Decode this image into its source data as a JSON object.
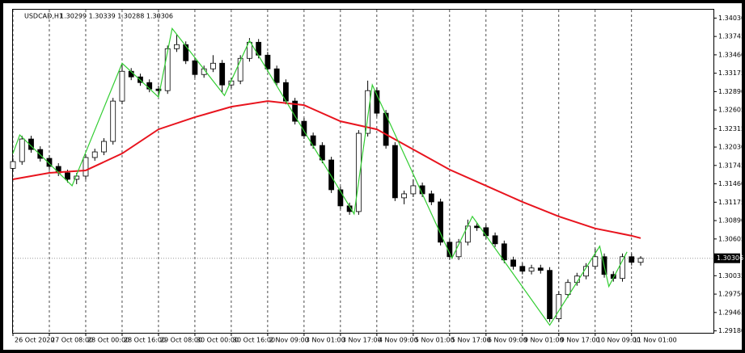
{
  "chart_data": {
    "type": "candlestick",
    "title": "USDCAD,H1",
    "ohlc_info": "1.30299 1.30339 1.30288 1.30306",
    "up_color": "#ffffff",
    "down_color": "#000000",
    "outline_color": "#000000",
    "grid": true,
    "x": [
      0,
      4,
      8,
      12,
      16,
      20,
      24,
      28,
      32,
      36,
      40,
      44,
      48,
      52,
      56,
      60,
      64,
      68,
      72,
      76,
      80,
      84,
      88,
      92,
      96,
      100,
      104,
      108,
      112,
      116,
      120,
      124,
      128,
      132,
      136,
      140,
      144,
      148,
      152,
      156,
      160,
      164,
      168,
      172,
      176,
      180,
      184,
      188,
      192,
      196,
      200,
      204,
      208,
      212,
      216,
      220,
      224,
      228,
      232,
      236,
      240,
      244,
      248,
      252,
      256,
      260,
      264,
      268,
      272,
      276
    ],
    "open": [
      1.317,
      1.31805,
      1.32155,
      1.31992,
      1.31855,
      1.3173,
      1.3163,
      1.3153,
      1.3158,
      1.31868,
      1.31955,
      1.32118,
      1.32743,
      1.33205,
      1.33118,
      1.3303,
      1.3293,
      1.32905,
      1.33555,
      1.33618,
      1.33368,
      1.33155,
      1.33243,
      1.3333,
      1.32993,
      1.33055,
      1.33405,
      1.33655,
      1.33455,
      1.33243,
      1.3303,
      1.32743,
      1.3243,
      1.32205,
      1.32055,
      1.3183,
      1.31368,
      1.31118,
      1.3103,
      1.32243,
      1.32905,
      1.32555,
      1.32055,
      1.31243,
      1.31305,
      1.3143,
      1.31305,
      1.3118,
      1.30555,
      1.3033,
      1.30555,
      1.30805,
      1.3078,
      1.30655,
      1.3053,
      1.3028,
      1.3018,
      1.30105,
      1.30155,
      1.30118,
      1.29368,
      1.29743,
      1.2993,
      1.3003,
      1.3018,
      1.3033,
      1.30055,
      1.29993,
      1.3033,
      1.30243
    ],
    "high": [
      1.31855,
      1.32205,
      1.32205,
      1.32042,
      1.31905,
      1.3178,
      1.3168,
      1.3163,
      1.31918,
      1.32005,
      1.32168,
      1.32793,
      1.33305,
      1.33255,
      1.33168,
      1.3308,
      1.3298,
      1.33605,
      1.3378,
      1.33668,
      1.33418,
      1.33293,
      1.33455,
      1.3338,
      1.33105,
      1.33455,
      1.3372,
      1.33705,
      1.33505,
      1.33293,
      1.3308,
      1.32793,
      1.3248,
      1.32255,
      1.32105,
      1.3188,
      1.31418,
      1.31168,
      1.32293,
      1.3306,
      1.32955,
      1.32605,
      1.32105,
      1.31355,
      1.3153,
      1.3148,
      1.31355,
      1.3123,
      1.30605,
      1.30605,
      1.30905,
      1.30855,
      1.3083,
      1.30705,
      1.3058,
      1.3033,
      1.3023,
      1.30205,
      1.30205,
      1.30168,
      1.29793,
      1.2998,
      1.3008,
      1.3023,
      1.30455,
      1.3038,
      1.30105,
      1.3038,
      1.3038,
      1.30339
    ],
    "low": [
      1.3165,
      1.31755,
      1.31942,
      1.31805,
      1.3168,
      1.3158,
      1.3148,
      1.31455,
      1.3153,
      1.31818,
      1.31905,
      1.32068,
      1.32693,
      1.33068,
      1.3298,
      1.3288,
      1.32805,
      1.32855,
      1.33505,
      1.33318,
      1.33105,
      1.33105,
      1.33193,
      1.3288,
      1.32943,
      1.33005,
      1.33355,
      1.33405,
      1.33193,
      1.3298,
      1.32693,
      1.3238,
      1.32155,
      1.32005,
      1.3178,
      1.31318,
      1.31068,
      1.3098,
      1.3098,
      1.32193,
      1.32505,
      1.32005,
      1.31193,
      1.31143,
      1.31255,
      1.31255,
      1.3113,
      1.30505,
      1.3028,
      1.3028,
      1.30505,
      1.3073,
      1.30605,
      1.3048,
      1.3023,
      1.3013,
      1.30055,
      1.30055,
      1.30068,
      1.29318,
      1.29318,
      1.29693,
      1.2988,
      1.2998,
      1.3013,
      1.30005,
      1.29943,
      1.29943,
      1.30193,
      1.30193
    ],
    "close": [
      1.31805,
      1.32155,
      1.31992,
      1.31855,
      1.3173,
      1.3163,
      1.3153,
      1.3158,
      1.31868,
      1.31955,
      1.32118,
      1.32743,
      1.33205,
      1.33118,
      1.3303,
      1.3293,
      1.32905,
      1.33555,
      1.33618,
      1.33368,
      1.33155,
      1.33243,
      1.3333,
      1.32993,
      1.33055,
      1.33405,
      1.33655,
      1.33455,
      1.33243,
      1.3303,
      1.32743,
      1.3243,
      1.32205,
      1.32055,
      1.3183,
      1.31368,
      1.31118,
      1.3103,
      1.32243,
      1.32905,
      1.32555,
      1.32055,
      1.31243,
      1.31305,
      1.3143,
      1.31305,
      1.3118,
      1.30555,
      1.3033,
      1.30555,
      1.30805,
      1.3078,
      1.30655,
      1.3053,
      1.3028,
      1.3018,
      1.30105,
      1.30155,
      1.30118,
      1.29368,
      1.29743,
      1.2993,
      1.3003,
      1.3018,
      1.3033,
      1.30055,
      1.29993,
      1.3033,
      1.30243,
      1.30306
    ],
    "overlays": [
      {
        "color": "#e8141e",
        "width": 2,
        "x": [
          0,
          16,
          32,
          48,
          64,
          80,
          96,
          112,
          128,
          144,
          160,
          176,
          192,
          208,
          224,
          240,
          256,
          272,
          276
        ],
        "values": [
          1.3153,
          1.3163,
          1.31668,
          1.3193,
          1.32305,
          1.32493,
          1.32655,
          1.32743,
          1.3268,
          1.3243,
          1.32305,
          1.31993,
          1.3168,
          1.3143,
          1.3118,
          1.30955,
          1.30768,
          1.30655,
          1.30618
        ]
      },
      {
        "color": "#32cd32",
        "width": 1.2,
        "x": [
          0,
          3,
          26,
          48,
          64,
          70,
          93,
          104,
          150,
          158,
          193,
          202,
          236,
          258,
          262,
          270
        ],
        "values": [
          1.3193,
          1.32218,
          1.3143,
          1.3333,
          1.32805,
          1.33868,
          1.3283,
          1.3368,
          1.30993,
          1.32993,
          1.30305,
          1.30955,
          1.29268,
          1.30493,
          1.29868,
          1.30405
        ]
      }
    ],
    "last_price": 1.30306,
    "xlim": [
      0,
      308
    ],
    "ylim": [
      1.2915,
      1.3416
    ],
    "yticks": [
      {
        "value": 1.3403,
        "label": "1.34030"
      },
      1.33745,
      {
        "value": 1.3346,
        "label": "1.33460"
      },
      1.33175,
      {
        "value": 1.3289,
        "label": "1.32890"
      },
      1.32605,
      1.32315,
      {
        "value": 1.3203,
        "label": "1.32030"
      },
      1.31745,
      {
        "value": 1.3146,
        "label": "1.31460"
      },
      1.31175,
      {
        "value": 1.3089,
        "label": "1.30890"
      },
      1.30605,
      1.30035,
      {
        "value": 1.2975,
        "label": "1.29750"
      },
      1.29465,
      {
        "value": 1.2918,
        "label": "1.29180"
      }
    ],
    "xticks": [
      {
        "value": 0,
        "label": "26 Oct 2020"
      },
      {
        "value": 16,
        "label": "27 Oct 08:00"
      },
      {
        "value": 32,
        "label": "28 Oct 00:00"
      },
      {
        "value": 48,
        "label": "28 Oct 16:00"
      },
      {
        "value": 64,
        "label": "29 Oct 08:00"
      },
      {
        "value": 80,
        "label": "30 Oct 00:00"
      },
      {
        "value": 96,
        "label": "30 Oct 16:00"
      },
      {
        "value": 112,
        "label": "2 Nov 09:00"
      },
      {
        "value": 128,
        "label": "3 Nov 01:00"
      },
      {
        "value": 144,
        "label": "3 Nov 17:00"
      },
      {
        "value": 160,
        "label": "4 Nov 09:00"
      },
      {
        "value": 176,
        "label": "5 Nov 01:00"
      },
      {
        "value": 192,
        "label": "5 Nov 17:00"
      },
      {
        "value": 208,
        "label": "6 Nov 09:00"
      },
      {
        "value": 224,
        "label": "9 Nov 01:00"
      },
      {
        "value": 240,
        "label": "9 Nov 17:00"
      },
      {
        "value": 256,
        "label": "10 Nov 09:00"
      },
      {
        "value": 272,
        "label": "11 Nov 01:00"
      }
    ]
  }
}
